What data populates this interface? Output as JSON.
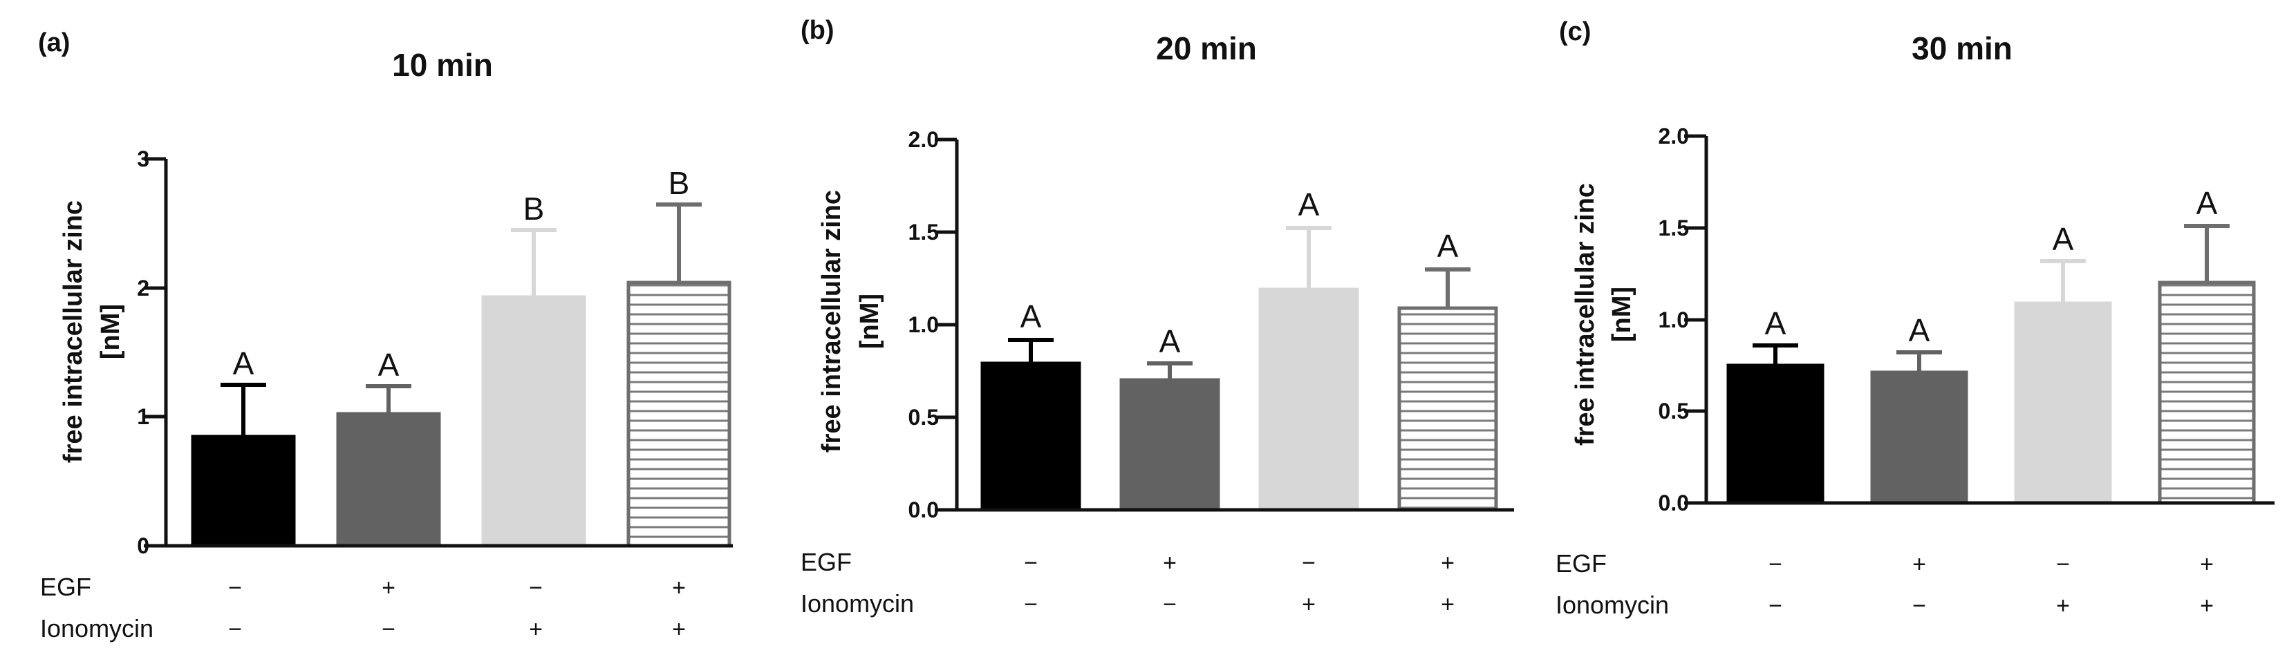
{
  "chart_data": [
    {
      "panel": "(a)",
      "type": "bar",
      "title": "10 min",
      "ylabel": [
        "free intracellular zinc",
        "[nM]"
      ],
      "ylim": [
        0,
        3
      ],
      "yticks": [
        0,
        1,
        2,
        3
      ],
      "ytick_labels": [
        "0",
        "1",
        "2",
        "3"
      ],
      "categories": [
        "EGF − / Ionomycin −",
        "EGF + / Ionomycin −",
        "EGF − / Ionomycin +",
        "EGF + / Ionomycin +"
      ],
      "values": [
        0.85,
        1.02,
        1.93,
        2.04
      ],
      "errors": [
        0.4,
        0.22,
        0.52,
        0.61
      ],
      "significance": [
        "A",
        "A",
        "B",
        "B"
      ],
      "treatments": {
        "EGF": [
          "−",
          "+",
          "−",
          "+"
        ],
        "Ionomycin": [
          "−",
          "−",
          "+",
          "+"
        ]
      }
    },
    {
      "panel": "(b)",
      "type": "bar",
      "title": "20 min",
      "ylabel": [
        "free intracellular zinc",
        "[nM]"
      ],
      "ylim": [
        0,
        2
      ],
      "yticks": [
        0,
        0.5,
        1,
        1.5,
        2
      ],
      "ytick_labels": [
        "0.0",
        "0.5",
        "1.0",
        "1.5",
        "2.0"
      ],
      "categories": [
        "EGF − / Ionomycin −",
        "EGF + / Ionomycin −",
        "EGF − / Ionomycin +",
        "EGF + / Ionomycin +"
      ],
      "values": [
        0.79,
        0.7,
        1.19,
        1.09
      ],
      "errors": [
        0.13,
        0.09,
        0.34,
        0.22
      ],
      "significance": [
        "A",
        "A",
        "A",
        "A"
      ],
      "treatments": {
        "EGF": [
          "−",
          "+",
          "−",
          "+"
        ],
        "Ionomycin": [
          "−",
          "−",
          "+",
          "+"
        ]
      }
    },
    {
      "panel": "(c)",
      "type": "bar",
      "title": "30 min",
      "ylabel": [
        "free intracellular zinc",
        "[nM]"
      ],
      "ylim": [
        0,
        2
      ],
      "yticks": [
        0,
        0.5,
        1,
        1.5,
        2
      ],
      "ytick_labels": [
        "0.0",
        "0.5",
        "1.0",
        "1.5",
        "2.0"
      ],
      "categories": [
        "EGF − / Ionomycin −",
        "EGF + / Ionomycin −",
        "EGF − / Ionomycin +",
        "EGF + / Ionomycin +"
      ],
      "values": [
        0.75,
        0.71,
        1.09,
        1.2
      ],
      "errors": [
        0.11,
        0.11,
        0.23,
        0.31
      ],
      "significance": [
        "A",
        "A",
        "A",
        "A"
      ],
      "treatments": {
        "EGF": [
          "−",
          "+",
          "−",
          "+"
        ],
        "Ionomycin": [
          "−",
          "−",
          "+",
          "+"
        ]
      }
    }
  ],
  "series_styles": [
    {
      "fill": "#000000",
      "stroke": "#000000",
      "pattern": "solid"
    },
    {
      "fill": "#626262",
      "stroke": "#626262",
      "pattern": "solid"
    },
    {
      "fill": "#d7d7d7",
      "stroke": "#d7d7d7",
      "pattern": "solid"
    },
    {
      "fill": "#ffffff",
      "stroke": "#6e6e6e",
      "pattern": "horizontal-stripes"
    }
  ],
  "row_labels": [
    "EGF",
    "Ionomycin"
  ]
}
